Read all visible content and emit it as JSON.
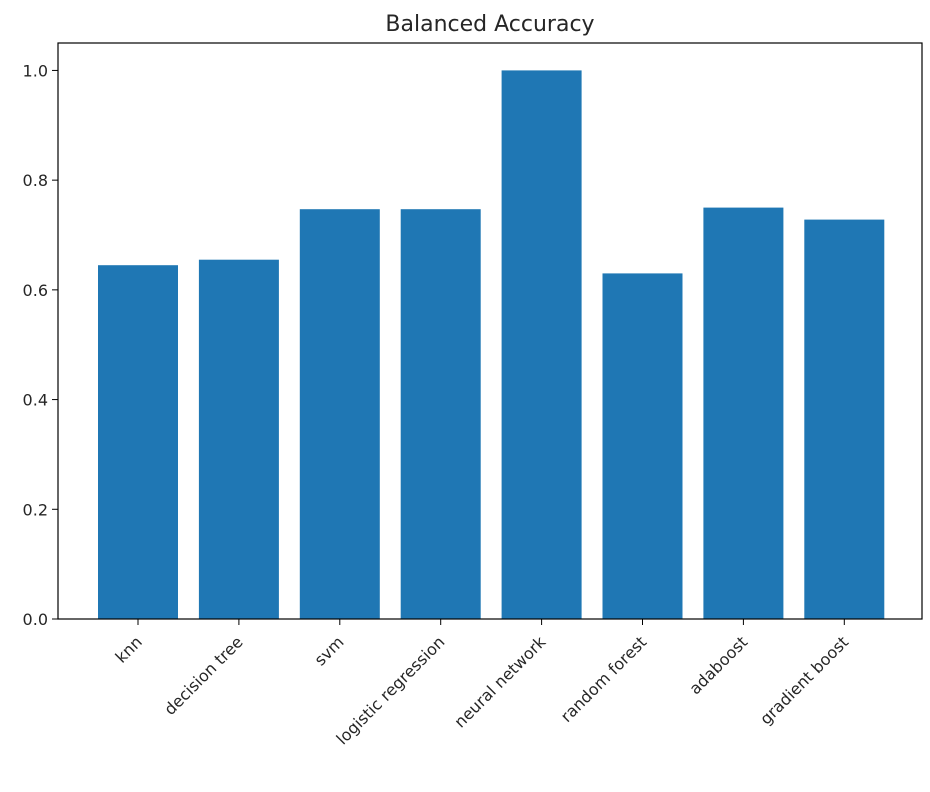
{
  "chart_data": {
    "type": "bar",
    "title": "Balanced Accuracy",
    "xlabel": "",
    "ylabel": "",
    "categories": [
      "knn",
      "decision tree",
      "svm",
      "logistic regression",
      "neural network",
      "random forest",
      "adaboost",
      "gradient boost"
    ],
    "values": [
      0.645,
      0.655,
      0.747,
      0.747,
      1.0,
      0.63,
      0.75,
      0.728
    ],
    "yticks": [
      "0.0",
      "0.2",
      "0.4",
      "0.6",
      "0.8",
      "1.0"
    ],
    "ylim": [
      0,
      1.05
    ],
    "grid": false,
    "bar_color": "#1f77b4"
  }
}
